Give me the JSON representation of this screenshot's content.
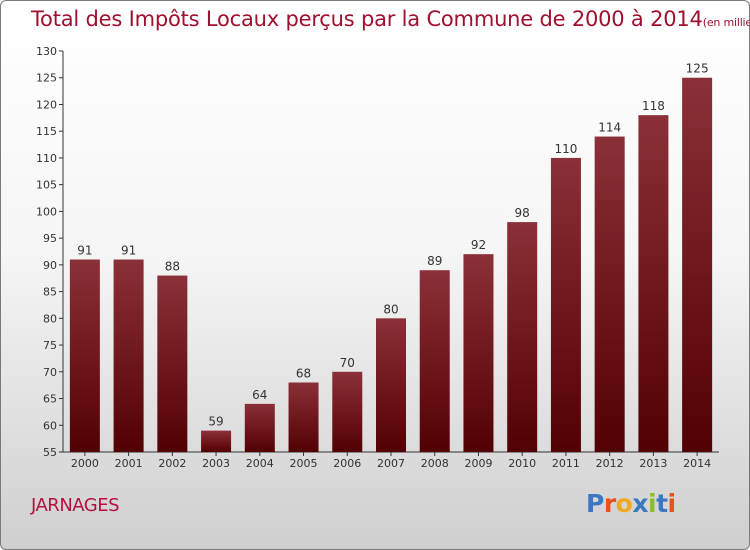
{
  "header": {
    "title": "Total des Impôts Locaux perçus par la Commune de 2000 à 2014",
    "unit": "(en milliers d'€)"
  },
  "footer": {
    "commune": "JARNAGES",
    "logo_text": "Proxiti",
    "logo_colors": [
      "#3a78c2",
      "#e8501c",
      "#f0a81e",
      "#3a78c2",
      "#8bbf2a",
      "#3a78c2",
      "#e8501c"
    ]
  },
  "colors": {
    "bar_top": "#8b3038",
    "bar_bottom": "#520003",
    "axis": "#333333"
  },
  "chart_data": {
    "type": "bar",
    "title": "Total des Impôts Locaux perçus par la Commune de 2000 à 2014",
    "xlabel": "",
    "ylabel": "",
    "categories": [
      "2000",
      "2001",
      "2002",
      "2003",
      "2004",
      "2005",
      "2006",
      "2007",
      "2008",
      "2009",
      "2010",
      "2011",
      "2012",
      "2013",
      "2014"
    ],
    "values": [
      91,
      91,
      88,
      59,
      64,
      68,
      70,
      80,
      89,
      92,
      98,
      110,
      114,
      118,
      125
    ],
    "ylim": [
      55,
      130
    ],
    "yticks": [
      55,
      60,
      65,
      70,
      75,
      80,
      85,
      90,
      95,
      100,
      105,
      110,
      115,
      120,
      125,
      130
    ],
    "grid": false
  }
}
